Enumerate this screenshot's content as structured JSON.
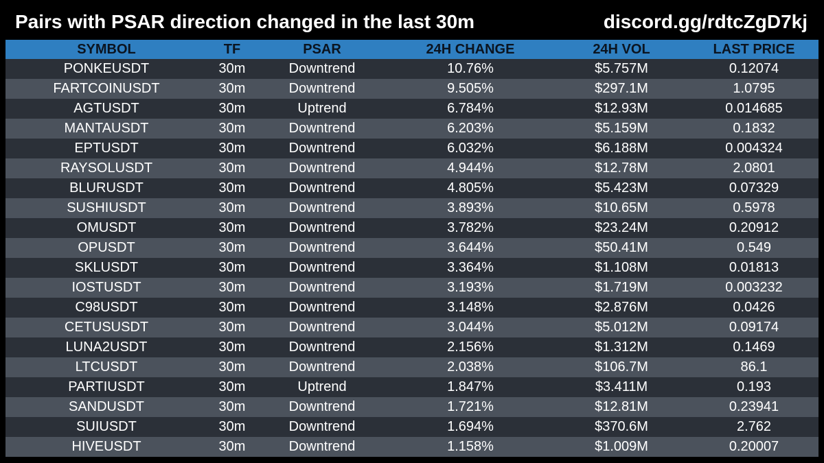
{
  "header": {
    "title": "Pairs with PSAR direction changed in the last 30m",
    "link": "discord.gg/rdtcZgD7kj"
  },
  "colors": {
    "header_bg": "#2f7fc1",
    "row_dark": "#2b3038",
    "row_light": "#4b525c",
    "background": "#000000"
  },
  "table": {
    "columns": [
      "SYMBOL",
      "TF",
      "PSAR",
      "24H CHANGE",
      "24H VOL",
      "LAST PRICE"
    ],
    "rows": [
      [
        "PONKEUSDT",
        "30m",
        "Downtrend",
        "10.76%",
        "$5.757M",
        "0.12074"
      ],
      [
        "FARTCOINUSDT",
        "30m",
        "Downtrend",
        "9.505%",
        "$297.1M",
        "1.0795"
      ],
      [
        "AGTUSDT",
        "30m",
        "Uptrend",
        "6.784%",
        "$12.93M",
        "0.014685"
      ],
      [
        "MANTAUSDT",
        "30m",
        "Downtrend",
        "6.203%",
        "$5.159M",
        "0.1832"
      ],
      [
        "EPTUSDT",
        "30m",
        "Downtrend",
        "6.032%",
        "$6.188M",
        "0.004324"
      ],
      [
        "RAYSOLUSDT",
        "30m",
        "Downtrend",
        "4.944%",
        "$12.78M",
        "2.0801"
      ],
      [
        "BLURUSDT",
        "30m",
        "Downtrend",
        "4.805%",
        "$5.423M",
        "0.07329"
      ],
      [
        "SUSHIUSDT",
        "30m",
        "Downtrend",
        "3.893%",
        "$10.65M",
        "0.5978"
      ],
      [
        "OMUSDT",
        "30m",
        "Downtrend",
        "3.782%",
        "$23.24M",
        "0.20912"
      ],
      [
        "OPUSDT",
        "30m",
        "Downtrend",
        "3.644%",
        "$50.41M",
        "0.549"
      ],
      [
        "SKLUSDT",
        "30m",
        "Downtrend",
        "3.364%",
        "$1.108M",
        "0.01813"
      ],
      [
        "IOSTUSDT",
        "30m",
        "Downtrend",
        "3.193%",
        "$1.719M",
        "0.003232"
      ],
      [
        "C98USDT",
        "30m",
        "Downtrend",
        "3.148%",
        "$2.876M",
        "0.0426"
      ],
      [
        "CETUSUSDT",
        "30m",
        "Downtrend",
        "3.044%",
        "$5.012M",
        "0.09174"
      ],
      [
        "LUNA2USDT",
        "30m",
        "Downtrend",
        "2.156%",
        "$1.312M",
        "0.1469"
      ],
      [
        "LTCUSDT",
        "30m",
        "Downtrend",
        "2.038%",
        "$106.7M",
        "86.1"
      ],
      [
        "PARTIUSDT",
        "30m",
        "Uptrend",
        "1.847%",
        "$3.411M",
        "0.193"
      ],
      [
        "SANDUSDT",
        "30m",
        "Downtrend",
        "1.721%",
        "$12.81M",
        "0.23941"
      ],
      [
        "SUIUSDT",
        "30m",
        "Downtrend",
        "1.694%",
        "$370.6M",
        "2.762"
      ],
      [
        "HIVEUSDT",
        "30m",
        "Downtrend",
        "1.158%",
        "$1.009M",
        "0.20007"
      ]
    ]
  }
}
